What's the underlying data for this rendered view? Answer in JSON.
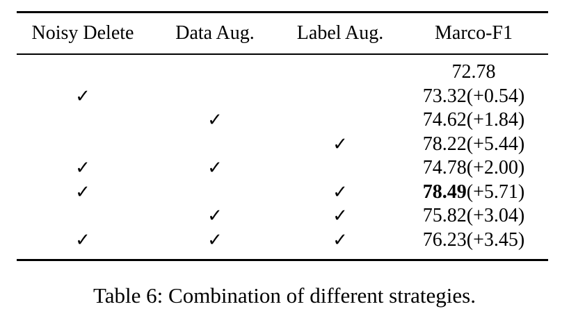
{
  "table": {
    "headers": [
      "Noisy Delete",
      "Data Aug.",
      "Label Aug.",
      "Marco-F1"
    ],
    "check_symbol": "✓",
    "rows": [
      {
        "noisy_delete": false,
        "data_aug": false,
        "label_aug": false,
        "score": "72.78",
        "delta": "",
        "bold": false
      },
      {
        "noisy_delete": true,
        "data_aug": false,
        "label_aug": false,
        "score": "73.32",
        "delta": "(+0.54)",
        "bold": false
      },
      {
        "noisy_delete": false,
        "data_aug": true,
        "label_aug": false,
        "score": "74.62",
        "delta": "(+1.84)",
        "bold": false
      },
      {
        "noisy_delete": false,
        "data_aug": false,
        "label_aug": true,
        "score": "78.22",
        "delta": "(+5.44)",
        "bold": false
      },
      {
        "noisy_delete": true,
        "data_aug": true,
        "label_aug": false,
        "score": "74.78",
        "delta": "(+2.00)",
        "bold": false
      },
      {
        "noisy_delete": true,
        "data_aug": false,
        "label_aug": true,
        "score": "78.49",
        "delta": "(+5.71)",
        "bold": true
      },
      {
        "noisy_delete": false,
        "data_aug": true,
        "label_aug": true,
        "score": "75.82",
        "delta": "(+3.04)",
        "bold": false
      },
      {
        "noisy_delete": true,
        "data_aug": true,
        "label_aug": true,
        "score": "76.23",
        "delta": "(+3.45)",
        "bold": false
      }
    ]
  },
  "caption": "Table 6: Combination of different strategies."
}
